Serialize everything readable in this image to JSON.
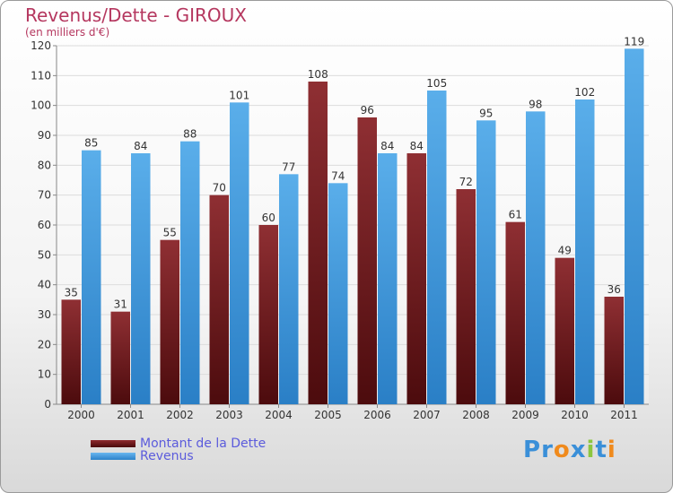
{
  "chart_data": {
    "type": "bar",
    "title": "Revenus/Dette - GIROUX",
    "subtitle": "(en milliers d'€)",
    "categories": [
      "2000",
      "2001",
      "2002",
      "2003",
      "2004",
      "2005",
      "2006",
      "2007",
      "2008",
      "2009",
      "2010",
      "2011"
    ],
    "series": [
      {
        "name": "Montant de la Dette",
        "color": "#7a1f24",
        "values": [
          35,
          31,
          55,
          70,
          60,
          108,
          96,
          84,
          72,
          61,
          49,
          36
        ]
      },
      {
        "name": "Revenus",
        "color": "#4fa3e4",
        "values": [
          85,
          84,
          88,
          101,
          77,
          74,
          84,
          105,
          95,
          98,
          102,
          119
        ]
      }
    ],
    "ylim": [
      0,
      120
    ],
    "yticks": [
      0,
      10,
      20,
      30,
      40,
      50,
      60,
      70,
      80,
      90,
      100,
      110,
      120
    ],
    "grid": true,
    "legend_position": "bottom-left"
  },
  "logo": {
    "text": "Proxiti",
    "letters": [
      "P",
      "r",
      "o",
      "x",
      "i",
      "t",
      "i"
    ],
    "colors": [
      "#3a8fd8",
      "#3a8fd8",
      "#f08a1c",
      "#3a8fd8",
      "#8cc63f",
      "#3a8fd8",
      "#f08a1c"
    ]
  }
}
